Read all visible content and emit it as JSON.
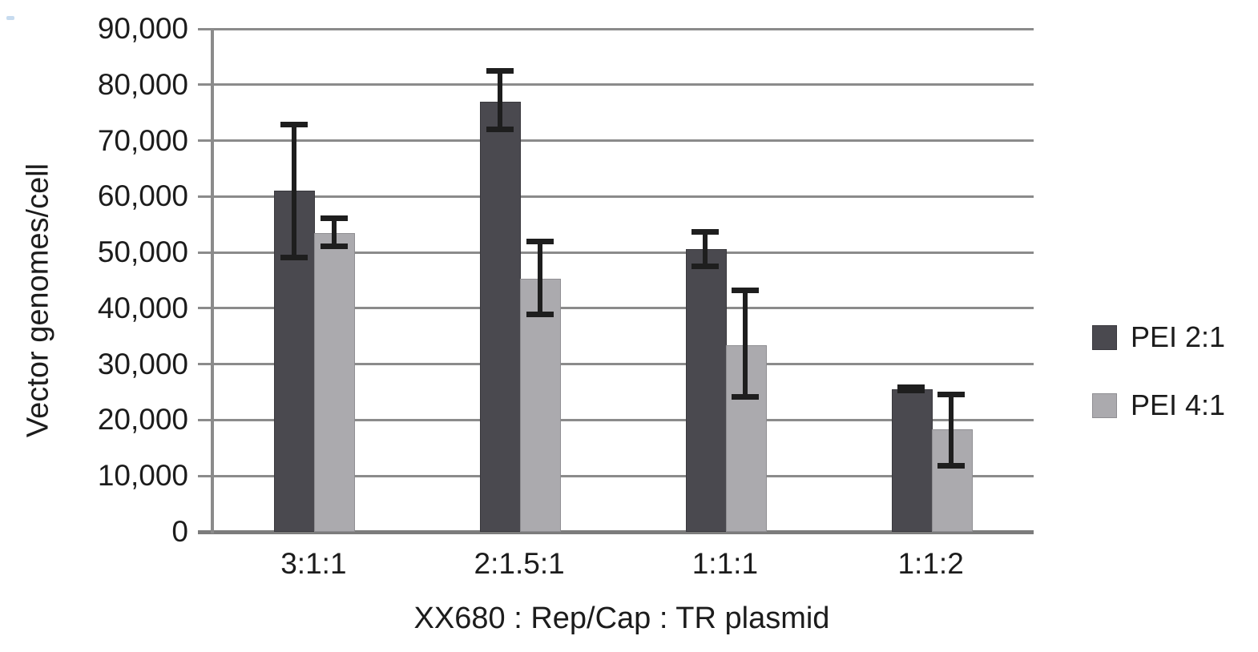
{
  "figure": {
    "background": "#ffffff",
    "text_color": "#1c1c1c"
  },
  "y_axis": {
    "title": "Vector genomes/cell",
    "tick_labels": [
      "90,000",
      "80,000",
      "70,000",
      "60,000",
      "50,000",
      "40,000",
      "30,000",
      "20,000",
      "10,000",
      "0"
    ],
    "min": 0,
    "max": 90000,
    "step": 10000
  },
  "x_axis": {
    "title": "XX680 : Rep/Cap : TR plasmid",
    "categories": [
      "3:1:1",
      "2:1.5:1",
      "1:1:1",
      "1:1:2"
    ]
  },
  "legend": {
    "items": [
      {
        "label": "PEI 2:1",
        "color": "#4a494f"
      },
      {
        "label": "PEI 4:1",
        "color": "#abaaae"
      }
    ]
  },
  "colors": {
    "dark_series": "#4a494f",
    "light_series": "#abaaae",
    "gridline": "#8b8b8b",
    "axis_line": "#7c7c7c",
    "error_bar": "#1e1e1e",
    "text": "#1c1c1c"
  },
  "chart_data": {
    "type": "bar",
    "title": "",
    "xlabel": "XX680 : Rep/Cap : TR plasmid",
    "ylabel": "Vector genomes/cell",
    "categories": [
      "3:1:1",
      "2:1.5:1",
      "1:1:1",
      "1:1:2"
    ],
    "series": [
      {
        "name": "PEI 2:1",
        "color": "#4a494f",
        "values": [
          61000,
          77000,
          50600,
          25500
        ],
        "error_high": [
          73000,
          82600,
          53700,
          26000
        ],
        "error_low": [
          49000,
          72000,
          47400,
          25200
        ]
      },
      {
        "name": "PEI 4:1",
        "color": "#abaaae",
        "values": [
          53400,
          45300,
          33400,
          18300
        ],
        "error_high": [
          56200,
          52000,
          43300,
          24700
        ],
        "error_low": [
          51000,
          38800,
          24100,
          11700
        ]
      }
    ],
    "ylim": [
      0,
      90000
    ],
    "ytick_step": 10000,
    "grid": true,
    "error_bars": true,
    "legend_position": "right"
  }
}
